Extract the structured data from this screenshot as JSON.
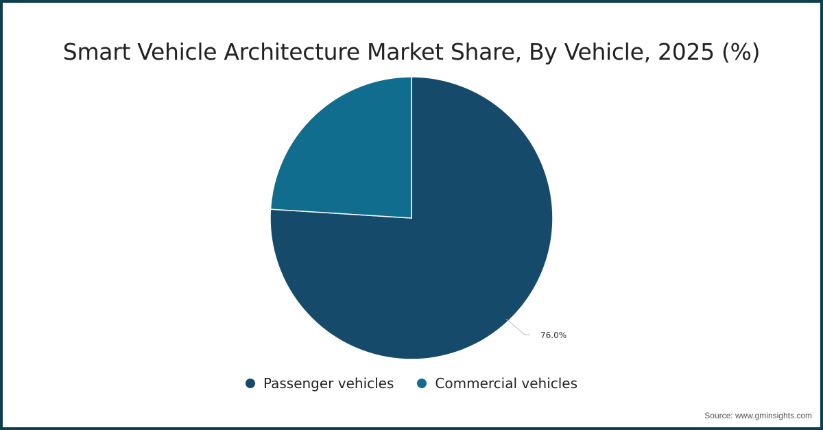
{
  "chart_data": {
    "type": "pie",
    "title": "Smart Vehicle Architecture Market Share, By Vehicle, 2025 (%)",
    "slices": [
      {
        "label": "Passenger vehicles",
        "value": 76.0,
        "color": "#164a6b",
        "data_label": "76.0%"
      },
      {
        "label": "Commercial vehicles",
        "value": 24.0,
        "color": "#116d8e"
      }
    ],
    "legend_placement": "bottom"
  },
  "source": "Source: www.gminsights.com"
}
